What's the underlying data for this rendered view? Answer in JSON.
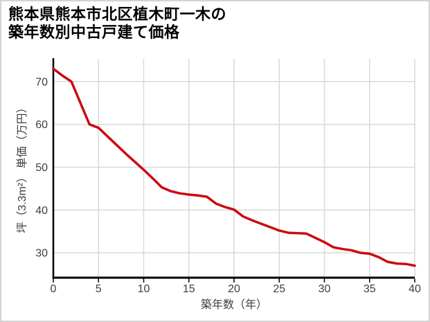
{
  "title": {
    "line1": "熊本県熊本市北区植木町一木の",
    "line2": "築年数別中古戸建て価格"
  },
  "chart_data": {
    "type": "line",
    "title": "熊本県熊本市北区植木町一木の築年数別中古戸建て価格",
    "xlabel": "築年数（年）",
    "ylabel": "坪（3.3m²） 単価（万円）",
    "x": [
      0,
      1,
      2,
      3,
      4,
      5,
      6,
      7,
      8,
      9,
      10,
      11,
      12,
      13,
      14,
      15,
      16,
      17,
      18,
      19,
      20,
      21,
      22,
      23,
      24,
      25,
      26,
      27,
      28,
      29,
      30,
      31,
      32,
      33,
      34,
      35,
      36,
      37,
      38,
      39,
      40
    ],
    "values": [
      73.0,
      71.4,
      70.0,
      65.0,
      60.0,
      59.2,
      57.2,
      55.2,
      53.2,
      51.3,
      49.4,
      47.4,
      45.3,
      44.4,
      43.9,
      43.6,
      43.4,
      43.1,
      41.5,
      40.7,
      40.1,
      38.5,
      37.6,
      36.8,
      36.0,
      35.2,
      34.7,
      34.6,
      34.5,
      33.5,
      32.5,
      31.3,
      30.9,
      30.6,
      30.0,
      29.8,
      29.0,
      27.9,
      27.5,
      27.4,
      27.0
    ],
    "xlim": [
      0,
      40
    ],
    "ylim": [
      24.2,
      75.3
    ],
    "xticks": [
      0,
      5,
      10,
      15,
      20,
      25,
      30,
      35,
      40
    ],
    "yticks": [
      30,
      40,
      50,
      60,
      70
    ],
    "grid": true,
    "legend": false,
    "colors": {
      "line": "#cc0a10",
      "grid": "#d9d9d9",
      "axis": "#000000",
      "tick_label": "#3d3d3d"
    }
  }
}
